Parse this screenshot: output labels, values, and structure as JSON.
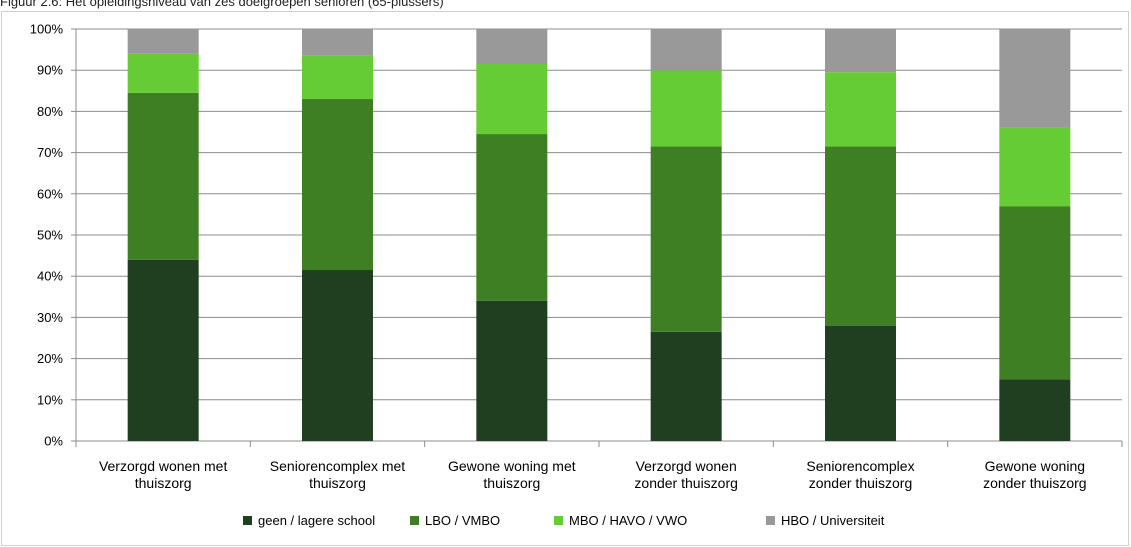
{
  "caption": "Figuur 2.6:  Het opleidingsniveau van zes doelgroepen senioren (65-plussers)",
  "chart_data": {
    "type": "bar",
    "stacked": true,
    "percent": true,
    "title": "Figuur 2.6:  Het opleidingsniveau van zes doelgroepen senioren (65-plussers)",
    "xlabel": "",
    "ylabel": "",
    "ylim": [
      0,
      100
    ],
    "yticks": [
      "0%",
      "10%",
      "20%",
      "30%",
      "40%",
      "50%",
      "60%",
      "70%",
      "80%",
      "90%",
      "100%"
    ],
    "grid": true,
    "legend": "bottom",
    "categories": [
      [
        "Verzorgd wonen met",
        "thuiszorg"
      ],
      [
        "Seniorencomplex met",
        "thuiszorg"
      ],
      [
        "Gewone woning met",
        "thuiszorg"
      ],
      [
        "Verzorgd wonen",
        "zonder thuiszorg"
      ],
      [
        "Seniorencomplex",
        "zonder thuiszorg"
      ],
      [
        "Gewone woning",
        "zonder thuiszorg"
      ]
    ],
    "series": [
      {
        "name": "geen / lagere school",
        "color": "#1f3f20",
        "values": [
          44,
          41.5,
          34,
          26.5,
          28,
          15
        ]
      },
      {
        "name": "LBO / VMBO",
        "color": "#3f7f23",
        "values": [
          40.5,
          41.5,
          40.5,
          45,
          43.5,
          42
        ]
      },
      {
        "name": "MBO / HAVO / VWO",
        "color": "#66cc33",
        "values": [
          9.5,
          10.5,
          17,
          18.5,
          18,
          19
        ]
      },
      {
        "name": "HBO / Universiteit",
        "color": "#999999",
        "values": [
          6,
          6.5,
          8.5,
          10,
          10.5,
          24
        ]
      }
    ]
  }
}
